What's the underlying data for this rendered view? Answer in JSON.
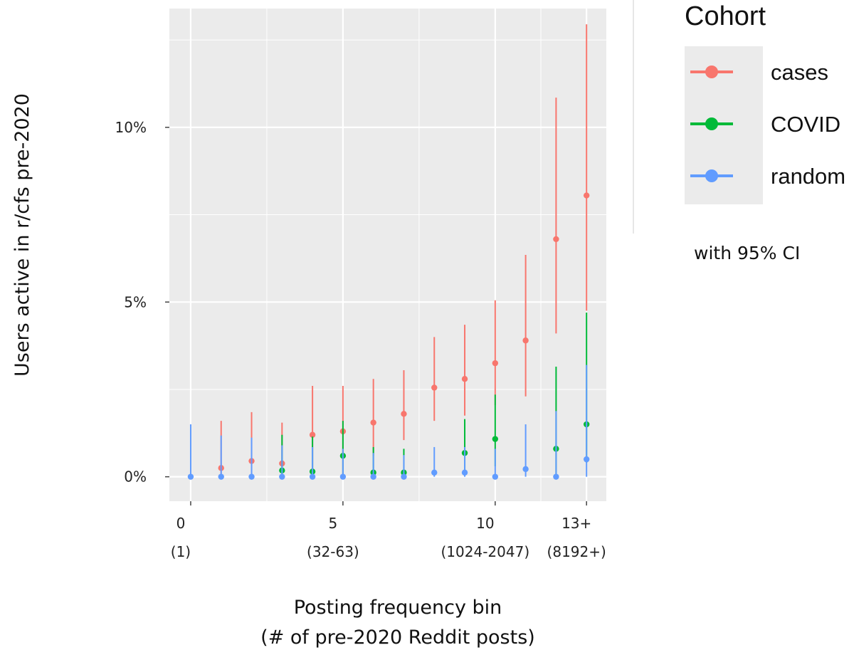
{
  "chart_data": {
    "type": "scatter",
    "x_ticks": [
      {
        "x": 0,
        "label": "0",
        "sublabel": "(1)"
      },
      {
        "x": 5,
        "label": "5",
        "sublabel": "(32-63)"
      },
      {
        "x": 10,
        "label": "10",
        "sublabel": "(1024-2047)"
      },
      {
        "x": 13,
        "label": "13+",
        "sublabel": "(8192+)"
      }
    ],
    "y_ticks": [
      {
        "y": 0,
        "label": "0%"
      },
      {
        "y": 5,
        "label": "5%"
      },
      {
        "y": 10,
        "label": "10%"
      }
    ],
    "xlim": [
      -0.7,
      13.65
    ],
    "ylim": [
      -0.7,
      13.4
    ],
    "grid": true,
    "xlabel": "Posting frequency bin",
    "xlabel_line2": "(# of pre-2020 Reddit posts)",
    "ylabel": "Users active in r/cfs pre-2020",
    "legend": {
      "title": "Cohort",
      "position": "right",
      "note": "with 95% CI"
    },
    "series": [
      {
        "name": "cases",
        "color": "#F8766D",
        "points": [
          {
            "x": 1,
            "y": 0.25,
            "lo": 0.0,
            "hi": 1.6
          },
          {
            "x": 2,
            "y": 0.45,
            "lo": 0.0,
            "hi": 1.85
          },
          {
            "x": 3,
            "y": 0.38,
            "lo": 0.0,
            "hi": 1.55
          },
          {
            "x": 4,
            "y": 1.2,
            "lo": 0.0,
            "hi": 2.6
          },
          {
            "x": 5,
            "y": 1.3,
            "lo": 0.0,
            "hi": 2.6
          },
          {
            "x": 6,
            "y": 1.55,
            "lo": 0.6,
            "hi": 2.8
          },
          {
            "x": 7,
            "y": 1.8,
            "lo": 1.05,
            "hi": 3.05
          },
          {
            "x": 8,
            "y": 2.55,
            "lo": 1.6,
            "hi": 4.0
          },
          {
            "x": 9,
            "y": 2.8,
            "lo": 1.75,
            "hi": 4.35
          },
          {
            "x": 10,
            "y": 3.25,
            "lo": 2.05,
            "hi": 5.05
          },
          {
            "x": 11,
            "y": 3.9,
            "lo": 2.3,
            "hi": 6.35
          },
          {
            "x": 12,
            "y": 6.8,
            "lo": 4.1,
            "hi": 10.85
          },
          {
            "x": 13,
            "y": 8.05,
            "lo": 4.75,
            "hi": 12.95
          }
        ]
      },
      {
        "name": "COVID",
        "color": "#00BA38",
        "points": [
          {
            "x": 3,
            "y": 0.18,
            "lo": 0.0,
            "hi": 1.2
          },
          {
            "x": 4,
            "y": 0.15,
            "lo": 0.0,
            "hi": 1.15
          },
          {
            "x": 5,
            "y": 0.6,
            "lo": 0.0,
            "hi": 1.6
          },
          {
            "x": 6,
            "y": 0.12,
            "lo": 0.0,
            "hi": 0.85
          },
          {
            "x": 7,
            "y": 0.12,
            "lo": 0.0,
            "hi": 0.8
          },
          {
            "x": 9,
            "y": 0.68,
            "lo": 0.05,
            "hi": 1.65
          },
          {
            "x": 10,
            "y": 1.08,
            "lo": 0.3,
            "hi": 2.35
          },
          {
            "x": 12,
            "y": 0.8,
            "lo": 0.05,
            "hi": 3.15
          },
          {
            "x": 13,
            "y": 1.5,
            "lo": 0.4,
            "hi": 4.7
          }
        ]
      },
      {
        "name": "random",
        "color": "#619CFF",
        "points": [
          {
            "x": 0,
            "y": 0.0,
            "lo": 0.0,
            "hi": 1.5
          },
          {
            "x": 1,
            "y": 0.0,
            "lo": 0.0,
            "hi": 1.18
          },
          {
            "x": 2,
            "y": 0.0,
            "lo": 0.0,
            "hi": 1.12
          },
          {
            "x": 3,
            "y": 0.0,
            "lo": 0.0,
            "hi": 0.9
          },
          {
            "x": 4,
            "y": 0.0,
            "lo": 0.0,
            "hi": 0.85
          },
          {
            "x": 5,
            "y": 0.0,
            "lo": 0.0,
            "hi": 0.8
          },
          {
            "x": 6,
            "y": 0.0,
            "lo": 0.0,
            "hi": 0.68
          },
          {
            "x": 7,
            "y": 0.0,
            "lo": 0.0,
            "hi": 0.62
          },
          {
            "x": 8,
            "y": 0.12,
            "lo": 0.0,
            "hi": 0.85
          },
          {
            "x": 9,
            "y": 0.12,
            "lo": 0.0,
            "hi": 0.85
          },
          {
            "x": 10,
            "y": 0.0,
            "lo": 0.0,
            "hi": 0.8
          },
          {
            "x": 11,
            "y": 0.22,
            "lo": 0.0,
            "hi": 1.5
          },
          {
            "x": 12,
            "y": 0.0,
            "lo": 0.0,
            "hi": 1.88
          },
          {
            "x": 13,
            "y": 0.5,
            "lo": 0.0,
            "hi": 3.2
          }
        ]
      }
    ]
  }
}
